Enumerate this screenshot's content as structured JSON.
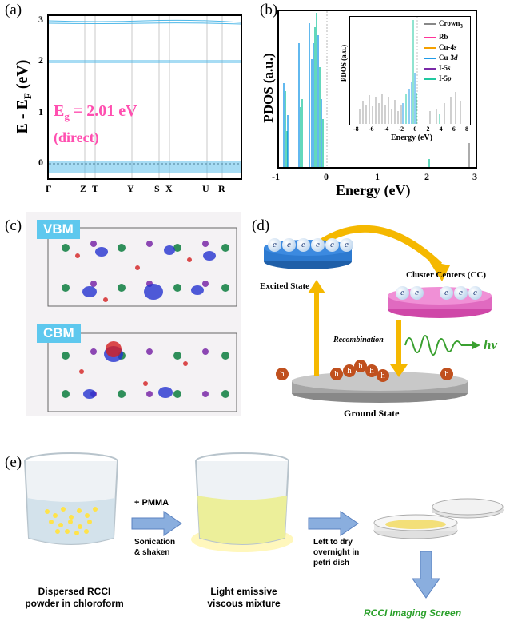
{
  "panels": {
    "a": {
      "label": "(a)",
      "ylabel_main": "E - E",
      "ylabel_sub": "F",
      "ylabel_unit": " (eV)",
      "yticks": [
        "3",
        "2",
        "1",
        "0"
      ],
      "kpoints": [
        "Γ",
        "Z",
        "T",
        "Y",
        "S",
        "X",
        "U",
        "R"
      ],
      "gap_label_main": "E",
      "gap_label_sub": "g",
      "gap_label_rest": " = 2.01 eV",
      "gap_type": "(direct)",
      "accent_color": "#ff4fb0",
      "band_color": "#4fb8e8"
    },
    "b": {
      "label": "(b)",
      "ylabel": "PDOS (a.u.)",
      "xlabel": "Energy (eV)",
      "xticks": [
        "-1",
        "0",
        "1",
        "2",
        "3"
      ],
      "inset": {
        "ylabel": "PDOS (a.u.)",
        "xlabel": "Energy (eV)",
        "xticks": [
          "-8",
          "-6",
          "-4",
          "-2",
          "0",
          "2",
          "4",
          "6",
          "8"
        ],
        "legend": [
          {
            "name": "Crown",
            "sub": "3",
            "color": "#888888"
          },
          {
            "name": "Rb",
            "sub": "",
            "color": "#ff3399"
          },
          {
            "name": "Cu-4",
            "sub": "s",
            "color": "#f5a000"
          },
          {
            "name": "Cu-3",
            "sub": "d",
            "color": "#1f9be8"
          },
          {
            "name": "I-5",
            "sub": "s",
            "color": "#7a2aa8"
          },
          {
            "name": "I-5",
            "sub": "p",
            "color": "#20c8a0"
          }
        ]
      }
    },
    "c": {
      "label": "(c)",
      "vbm": "VBM",
      "cbm": "CBM"
    },
    "d": {
      "label": "(d)",
      "excited_state": "Excited State",
      "cluster_centers": "Cluster Centers (CC)",
      "recombination": "Recombination",
      "hv": "hv",
      "ground_state": "Ground State",
      "electron": "e",
      "hole": "h"
    },
    "e": {
      "label": "(e)",
      "step1_caption_line1": "Dispersed RCCI",
      "step1_caption_line2": "powder in chloroform",
      "arrow1_top": "+ PMMA",
      "arrow1_bottom_line1": "Sonication",
      "arrow1_bottom_line2": "& shaken",
      "step2_caption_line1": "Light emissive",
      "step2_caption_line2": "viscous mixture",
      "arrow2_line1": "Left to dry",
      "arrow2_line2": "overnight in",
      "arrow2_line3": "petri dish",
      "final_label": "RCCI Imaging Screen"
    }
  }
}
